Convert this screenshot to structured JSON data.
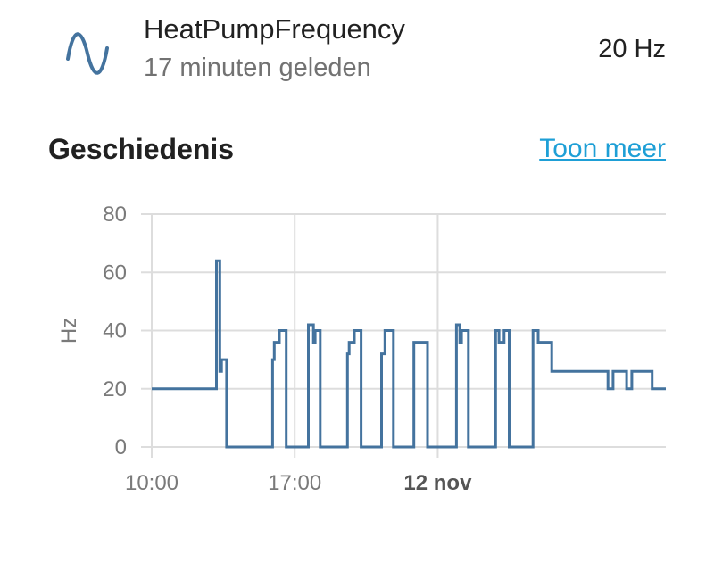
{
  "entity": {
    "name": "HeatPumpFrequency",
    "last_changed": "17 minuten geleden",
    "state": "20 Hz",
    "icon": "sine-wave-icon",
    "icon_color": "#44739e"
  },
  "history": {
    "title": "Geschiedenis",
    "show_more": "Toon meer"
  },
  "colors": {
    "line": "#44739e",
    "grid": "#dddddd",
    "link": "#1e9fd6"
  },
  "chart_data": {
    "type": "line",
    "step": true,
    "ylabel": "Hz",
    "ylim": [
      0,
      80
    ],
    "yticks": [
      0,
      20,
      40,
      60,
      80
    ],
    "xlim": [
      "2023-11-11 10:00",
      "2023-11-12 11:10"
    ],
    "xticks": [
      {
        "x": "2023-11-11 10:00",
        "label": "10:00",
        "bold": false
      },
      {
        "x": "2023-11-11 17:00",
        "label": "17:00",
        "bold": false
      },
      {
        "x": "2023-11-12 00:00",
        "label": "12 nov",
        "bold": true
      }
    ],
    "grid": true,
    "series": [
      {
        "color": "#44739e",
        "points": [
          [
            "2023-11-11 10:00",
            20
          ],
          [
            "2023-11-11 13:10",
            64
          ],
          [
            "2023-11-11 13:20",
            26
          ],
          [
            "2023-11-11 13:25",
            30
          ],
          [
            "2023-11-11 13:40",
            0
          ],
          [
            "2023-11-11 15:55",
            30
          ],
          [
            "2023-11-11 16:00",
            36
          ],
          [
            "2023-11-11 16:15",
            40
          ],
          [
            "2023-11-11 16:35",
            0
          ],
          [
            "2023-11-11 17:40",
            42
          ],
          [
            "2023-11-11 17:55",
            36
          ],
          [
            "2023-11-11 18:00",
            40
          ],
          [
            "2023-11-11 18:15",
            0
          ],
          [
            "2023-11-11 19:35",
            32
          ],
          [
            "2023-11-11 19:40",
            36
          ],
          [
            "2023-11-11 19:55",
            40
          ],
          [
            "2023-11-11 20:15",
            0
          ],
          [
            "2023-11-11 21:15",
            32
          ],
          [
            "2023-11-11 21:25",
            40
          ],
          [
            "2023-11-11 21:50",
            0
          ],
          [
            "2023-11-11 22:50",
            36
          ],
          [
            "2023-11-11 23:30",
            0
          ],
          [
            "2023-11-12 00:55",
            42
          ],
          [
            "2023-11-12 01:05",
            36
          ],
          [
            "2023-11-12 01:10",
            40
          ],
          [
            "2023-11-12 01:30",
            0
          ],
          [
            "2023-11-12 02:50",
            40
          ],
          [
            "2023-11-12 03:00",
            36
          ],
          [
            "2023-11-12 03:15",
            40
          ],
          [
            "2023-11-12 03:30",
            0
          ],
          [
            "2023-11-12 04:40",
            40
          ],
          [
            "2023-11-12 04:55",
            36
          ],
          [
            "2023-11-12 05:35",
            26
          ],
          [
            "2023-11-12 08:20",
            20
          ],
          [
            "2023-11-12 08:35",
            26
          ],
          [
            "2023-11-12 09:15",
            20
          ],
          [
            "2023-11-12 09:30",
            26
          ],
          [
            "2023-11-12 10:30",
            20
          ],
          [
            "2023-11-12 11:10",
            20
          ]
        ]
      }
    ]
  }
}
